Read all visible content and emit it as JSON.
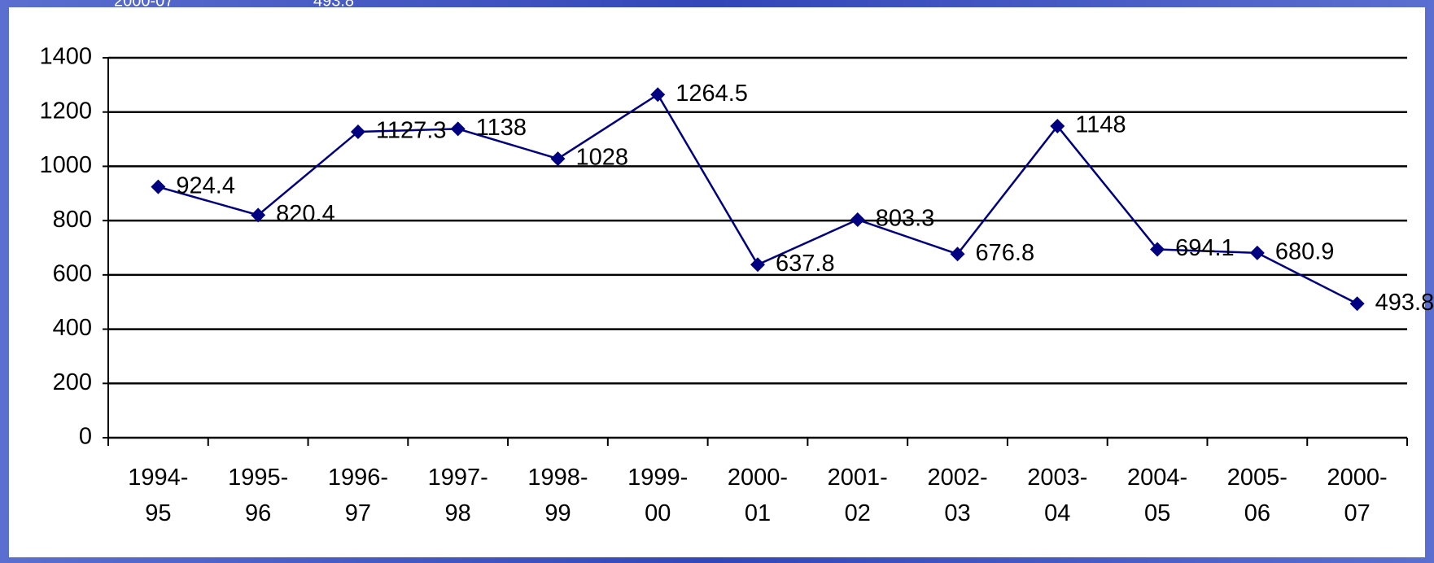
{
  "header_fragment": {
    "period": "2000-07",
    "value": "493.8"
  },
  "chart_data": {
    "type": "line",
    "categories": [
      "1994-95",
      "1995-96",
      "1996-97",
      "1997-98",
      "1998-99",
      "1999-00",
      "2000-01",
      "2001-02",
      "2002-03",
      "2003-04",
      "2004-05",
      "2005-06",
      "2000-07"
    ],
    "values": [
      924.4,
      820.4,
      1127.3,
      1138,
      1028,
      1264.5,
      637.8,
      803.3,
      676.8,
      1148,
      694.1,
      680.9,
      493.8
    ],
    "color": "#000080",
    "ylim": [
      0,
      1400
    ],
    "yticks": [
      0,
      200,
      400,
      600,
      800,
      1000,
      1200,
      1400
    ],
    "grid": true
  }
}
